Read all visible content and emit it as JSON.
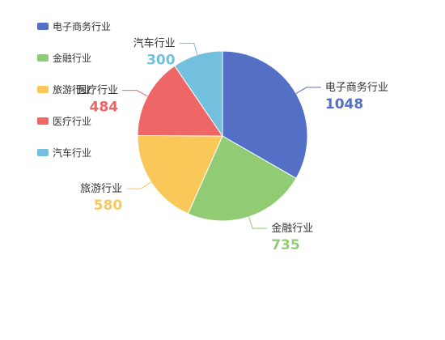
{
  "chart_data": {
    "type": "pie",
    "title": "",
    "categories": [
      "电子商务行业",
      "金融行业",
      "旅游行业",
      "医疗行业",
      "汽车行业"
    ],
    "values": [
      1048,
      735,
      580,
      484,
      300
    ],
    "colors": [
      "#5470c6",
      "#91cc75",
      "#fac858",
      "#ee6666",
      "#73c0de"
    ],
    "legend_position": "top-left"
  }
}
